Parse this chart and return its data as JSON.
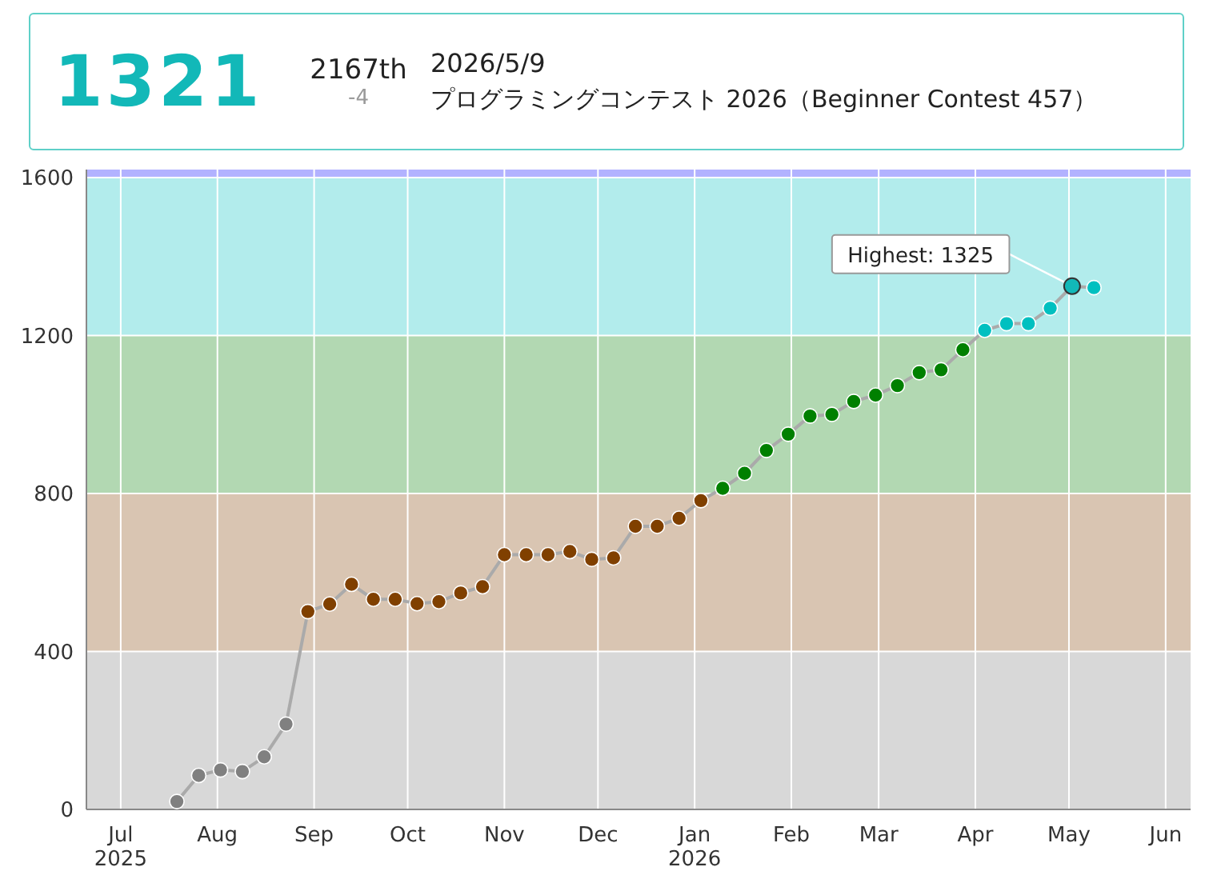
{
  "chart_data": {
    "type": "line",
    "title": "プログラミングコンテスト 2026（Beginner Contest 457）",
    "annotations": [
      "1321",
      "2167th",
      "-4",
      "2026/5/9",
      {
        "text": "Highest: 1325",
        "x": "2026-05-02",
        "y": 1325
      }
    ],
    "x": [
      "2025-07-19",
      "2025-07-26",
      "2025-08-02",
      "2025-08-09",
      "2025-08-16",
      "2025-08-23",
      "2025-08-30",
      "2025-09-06",
      "2025-09-13",
      "2025-09-20",
      "2025-09-27",
      "2025-10-04",
      "2025-10-11",
      "2025-10-18",
      "2025-10-25",
      "2025-11-01",
      "2025-11-08",
      "2025-11-15",
      "2025-11-22",
      "2025-11-29",
      "2025-12-06",
      "2025-12-13",
      "2025-12-20",
      "2025-12-27",
      "2026-01-03",
      "2026-01-10",
      "2026-01-17",
      "2026-01-24",
      "2026-01-31",
      "2026-02-07",
      "2026-02-14",
      "2026-02-21",
      "2026-02-28",
      "2026-03-07",
      "2026-03-14",
      "2026-03-21",
      "2026-03-28",
      "2026-04-04",
      "2026-04-11",
      "2026-04-18",
      "2026-04-25",
      "2026-05-02",
      "2026-05-09"
    ],
    "series": [
      {
        "color": "#aaaaaa",
        "values": [
          20,
          86,
          100,
          96,
          133,
          216,
          501,
          520,
          570,
          532,
          532,
          521,
          526,
          548,
          564,
          645,
          645,
          645,
          653,
          633,
          637,
          717,
          717,
          737,
          782,
          813,
          851,
          909,
          950,
          996,
          1000,
          1033,
          1049,
          1073,
          1106,
          1113,
          1164,
          1213,
          1230,
          1230,
          1269,
          1325,
          1321
        ],
        "colors": [
          "#808080",
          "#808080",
          "#808080",
          "#808080",
          "#808080",
          "#808080",
          "#804000",
          "#804000",
          "#804000",
          "#804000",
          "#804000",
          "#804000",
          "#804000",
          "#804000",
          "#804000",
          "#804000",
          "#804000",
          "#804000",
          "#804000",
          "#804000",
          "#804000",
          "#804000",
          "#804000",
          "#804000",
          "#804000",
          "#008000",
          "#008000",
          "#008000",
          "#008000",
          "#008000",
          "#008000",
          "#008000",
          "#008000",
          "#008000",
          "#008000",
          "#008000",
          "#008000",
          "#00c0c0",
          "#00c0c0",
          "#00c0c0",
          "#00c0c0",
          "#00c0c0",
          "#00c0c0"
        ]
      }
    ],
    "xlim": [
      "2025-06-20",
      "2026-06-09"
    ],
    "xticks": [
      {
        "value": "2025-07-01",
        "label": "Jul\n2025"
      },
      {
        "value": "2025-08-01",
        "label": "Aug"
      },
      {
        "value": "2025-09-01",
        "label": "Sep"
      },
      {
        "value": "2025-10-01",
        "label": "Oct"
      },
      {
        "value": "2025-11-01",
        "label": "Nov"
      },
      {
        "value": "2025-12-01",
        "label": "Dec"
      },
      {
        "value": "2026-01-01",
        "label": "Jan\n2026"
      },
      {
        "value": "2026-02-01",
        "label": "Feb"
      },
      {
        "value": "2026-03-01",
        "label": "Mar"
      },
      {
        "value": "2026-04-01",
        "label": "Apr"
      },
      {
        "value": "2026-05-01",
        "label": "May"
      },
      {
        "value": "2026-06-01",
        "label": "Jun"
      }
    ],
    "ylim": [
      0,
      1620
    ],
    "yticks": [
      0,
      400,
      800,
      1200,
      1600
    ],
    "bands": [
      {
        "axis": "y",
        "from": 0,
        "to": 400,
        "color": "#d8d8d8"
      },
      {
        "axis": "y",
        "from": 400,
        "to": 800,
        "color": "#d9c5b2"
      },
      {
        "axis": "y",
        "from": 800,
        "to": 1200,
        "color": "#b2d8b2"
      },
      {
        "axis": "y",
        "from": 1200,
        "to": 1600,
        "color": "#b2ecec"
      },
      {
        "axis": "y",
        "from": 1600,
        "to": 1620,
        "color": "#b2b2ff"
      }
    ],
    "grid": true,
    "marker": "circle"
  }
}
